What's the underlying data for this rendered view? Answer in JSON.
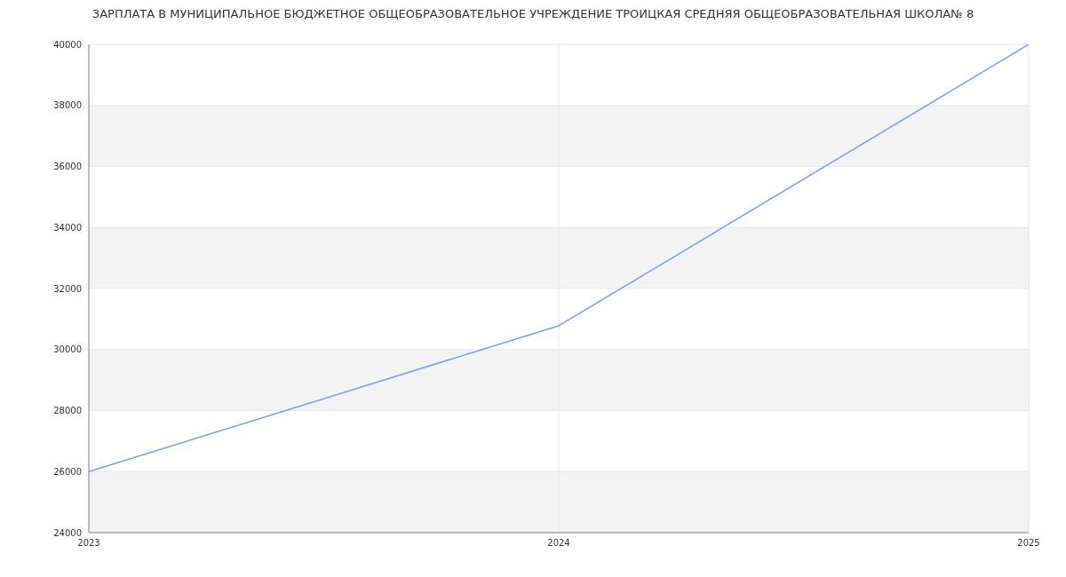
{
  "chart_data": {
    "type": "line",
    "title": "ЗАРПЛАТА В МУНИЦИПАЛЬНОЕ БЮДЖЕТНОЕ ОБЩЕОБРАЗОВАТЕЛЬНОЕ УЧРЕЖДЕНИЕ ТРОИЦКАЯ СРЕДНЯЯ ОБЩЕОБРАЗОВАТЕЛЬНАЯ ШКОЛА№ 8",
    "x": [
      2023,
      2024,
      2025
    ],
    "series": [
      {
        "color": "#769ff0",
        "values": [
          26000,
          30780,
          40000
        ]
      }
    ],
    "xlim": [
      2023,
      2025
    ],
    "xticks": [
      2023,
      2024,
      2025
    ],
    "ylim": [
      24000,
      40000
    ],
    "yticks": [
      24000,
      26000,
      28000,
      30000,
      32000,
      34000,
      36000,
      38000,
      40000
    ],
    "grid": true,
    "marker": "none",
    "line_style": "solid",
    "legend": false
  }
}
